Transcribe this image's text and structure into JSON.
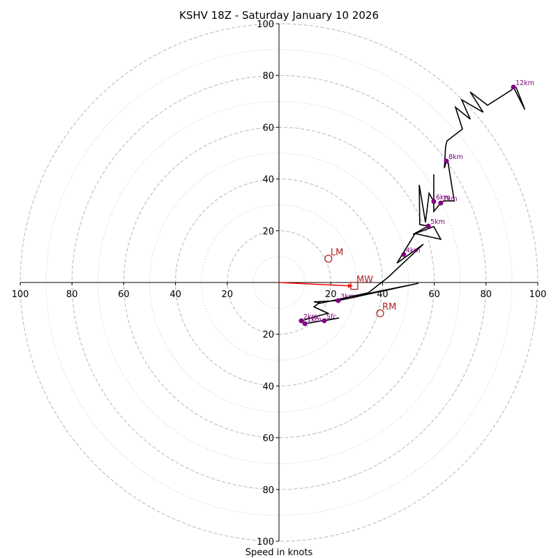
{
  "chart_data": {
    "type": "scatter",
    "subtype": "hodograph",
    "title": "KSHV 18Z - Saturday January 10 2026",
    "xlabel": "Speed in knots",
    "ylabel": "",
    "range_knots": [
      -100,
      100
    ],
    "rings_dashed": [
      20,
      40,
      60,
      80,
      100
    ],
    "rings_dotted": [
      10,
      30,
      50,
      70,
      90
    ],
    "x_tick_labels": [
      "100",
      "80",
      "60",
      "40",
      "20",
      "20",
      "40",
      "60",
      "80",
      "100"
    ],
    "x_tick_values": [
      -100,
      -80,
      -60,
      -40,
      -20,
      20,
      40,
      60,
      80,
      100
    ],
    "y_tick_labels": [
      "100",
      "80",
      "60",
      "40",
      "20",
      "20",
      "40",
      "60",
      "80",
      "100"
    ],
    "y_tick_values": [
      100,
      80,
      60,
      40,
      20,
      -20,
      -40,
      -60,
      -80,
      -100
    ],
    "hodograph_uv": [
      [
        17.5,
        -14.8
      ],
      [
        23.2,
        -13.7
      ],
      [
        10.0,
        -15.9
      ],
      [
        8.6,
        -14.8
      ],
      [
        18.9,
        -11.9
      ],
      [
        13.5,
        -9.4
      ],
      [
        15.6,
        -7.8
      ],
      [
        13.5,
        -7.5
      ],
      [
        22.9,
        -7.0
      ],
      [
        53.9,
        -0.3
      ],
      [
        15.4,
        -8.1
      ],
      [
        34.5,
        -4.0
      ],
      [
        42.0,
        1.9
      ],
      [
        55.8,
        14.8
      ],
      [
        45.6,
        7.5
      ],
      [
        52.6,
        18.9
      ],
      [
        62.5,
        16.7
      ],
      [
        59.8,
        21.6
      ],
      [
        51.8,
        18.6
      ],
      [
        57.7,
        21.8
      ],
      [
        54.4,
        22.4
      ],
      [
        54.2,
        37.7
      ],
      [
        56.6,
        23.2
      ],
      [
        58.0,
        34.5
      ],
      [
        59.8,
        31.3
      ],
      [
        59.8,
        41.8
      ],
      [
        59.8,
        27.5
      ],
      [
        62.5,
        30.7
      ],
      [
        63.6,
        31.5
      ],
      [
        67.7,
        31.5
      ],
      [
        65.2,
        47.2
      ],
      [
        64.7,
        46.9
      ],
      [
        63.9,
        44.2
      ],
      [
        64.4,
        52.6
      ],
      [
        64.9,
        54.7
      ],
      [
        70.9,
        59.3
      ],
      [
        68.2,
        67.7
      ],
      [
        73.9,
        63.1
      ],
      [
        70.6,
        70.6
      ],
      [
        78.9,
        65.8
      ],
      [
        73.9,
        73.6
      ],
      [
        80.6,
        68.5
      ],
      [
        89.8,
        74.4
      ],
      [
        90.6,
        75.5
      ],
      [
        95.0,
        66.8
      ],
      [
        91.6,
        75.5
      ]
    ],
    "levels": [
      {
        "label": "Sfc",
        "u": 17.5,
        "v": -14.8
      },
      {
        "label": "1km",
        "u": 10.0,
        "v": -15.9
      },
      {
        "label": "2km",
        "u": 8.6,
        "v": -14.8
      },
      {
        "label": "3km",
        "u": 22.9,
        "v": -7.0
      },
      {
        "label": "4km",
        "u": 48.2,
        "v": 10.8
      },
      {
        "label": "5km",
        "u": 57.7,
        "v": 21.8
      },
      {
        "label": "6km",
        "u": 59.8,
        "v": 31.3
      },
      {
        "label": "7km",
        "u": 62.5,
        "v": 30.7
      },
      {
        "label": "8km",
        "u": 64.7,
        "v": 46.9
      },
      {
        "label": "12km",
        "u": 90.6,
        "v": 75.5
      }
    ],
    "storm_motions": [
      {
        "label": "LM",
        "u": 19.1,
        "v": 9.2,
        "marker": "circle"
      },
      {
        "label": "RM",
        "u": 39.1,
        "v": -11.9,
        "marker": "circle"
      },
      {
        "label": "MW",
        "u": 29.1,
        "v": -1.3,
        "marker": "square"
      }
    ],
    "mean_wind_vector": {
      "from_uv": [
        0,
        0
      ],
      "to_uv": [
        29.1,
        -1.3
      ]
    },
    "colors": {
      "hodograph": "#000000",
      "levels": "#800080",
      "storm_motion": "#b22222",
      "vector": "#ff0000",
      "grid": "#bbbbbb"
    }
  }
}
